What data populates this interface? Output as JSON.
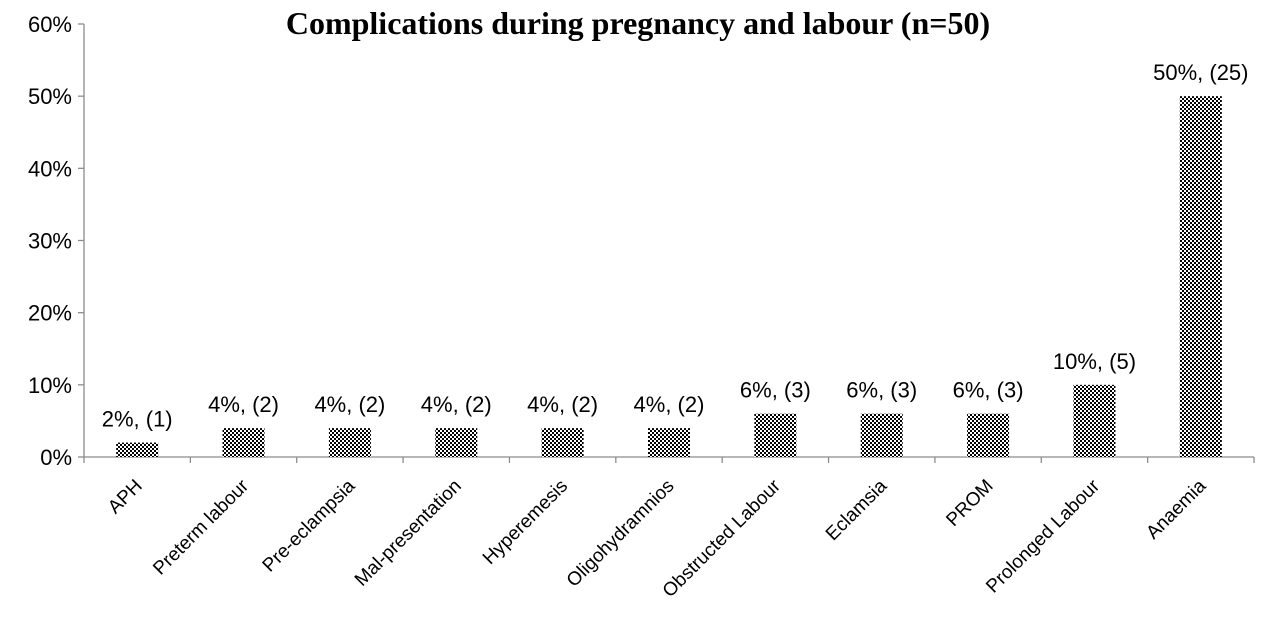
{
  "chart_data": {
    "type": "bar",
    "title": "Complications during pregnancy and labour (n=50)",
    "xlabel": "",
    "ylabel": "",
    "categories": [
      "APH",
      "Preterm labour",
      "Pre-eclampsia",
      "Mal-presentation",
      "Hyperemesis",
      "Oligohydramnios",
      "Obstructed Labour",
      "Eclamsia",
      "PROM",
      "Prolonged Labour",
      "Anaemia"
    ],
    "values": [
      2,
      4,
      4,
      4,
      4,
      4,
      6,
      6,
      6,
      10,
      50
    ],
    "data_labels": [
      "2%, (1)",
      "4%, (2)",
      "4%, (2)",
      "4%, (2)",
      "4%, (2)",
      "4%, (2)",
      "6%, (3)",
      "6%, (3)",
      "6%, (3)",
      "10%, (5)",
      "50%, (25)"
    ],
    "ylim": [
      0,
      60
    ],
    "yticks": [
      0,
      10,
      20,
      30,
      40,
      50,
      60
    ],
    "ytick_labels": [
      "0%",
      "10%",
      "20%",
      "30%",
      "40%",
      "50%",
      "60%"
    ],
    "grid": false,
    "legend": "none",
    "bar_fill": "checkered pattern",
    "colors": {
      "bar_dark": "#000000",
      "bar_light": "#ffffff",
      "axis": "#8c8c8c",
      "text": "#000000"
    }
  }
}
